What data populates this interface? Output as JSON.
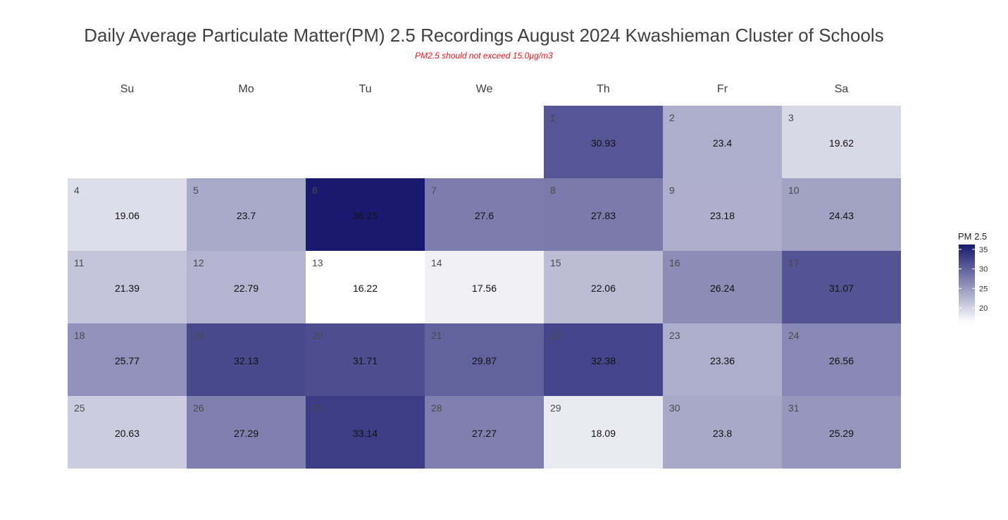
{
  "chart_data": {
    "type": "heatmap",
    "title": "Daily Average Particulate Matter(PM) 2.5 Recordings August 2024 Kwashieman Cluster of Schools",
    "subtitle": "PM2.5 should not exceed 15.0µg/m3",
    "weekdays": [
      "Su",
      "Mo",
      "Tu",
      "We",
      "Th",
      "Fr",
      "Sa"
    ],
    "first_weekday_index": 4,
    "days": [
      1,
      2,
      3,
      4,
      5,
      6,
      7,
      8,
      9,
      10,
      11,
      12,
      13,
      14,
      15,
      16,
      17,
      18,
      19,
      20,
      21,
      22,
      23,
      24,
      25,
      26,
      27,
      28,
      29,
      30,
      31
    ],
    "values": [
      30.93,
      23.4,
      19.62,
      19.06,
      23.7,
      36.25,
      27.6,
      27.83,
      23.18,
      24.43,
      21.39,
      22.79,
      16.22,
      17.56,
      22.06,
      26.24,
      31.07,
      25.77,
      32.13,
      31.71,
      29.87,
      32.38,
      23.36,
      26.56,
      20.63,
      27.29,
      33.14,
      27.27,
      18.09,
      23.8,
      25.29
    ],
    "value_labels": [
      "30.93",
      "23.4",
      "19.62",
      "19.06",
      "23.7",
      "36.25",
      "27.6",
      "27.83",
      "23.18",
      "24.43",
      "21.39",
      "22.79",
      "16.22",
      "17.56",
      "22.06",
      "26.24",
      "31.07",
      "25.77",
      "32.13",
      "31.71",
      "29.87",
      "32.38",
      "23.36",
      "26.56",
      "20.63",
      "27.29",
      "33.14",
      "27.27",
      "18.09",
      "23.8",
      "25.29"
    ],
    "legend": {
      "title": "PM 2.5",
      "ticks": [
        20,
        25,
        30,
        35
      ],
      "range": [
        16.22,
        36.25
      ],
      "position": "right"
    },
    "color_low": "#ffffff",
    "color_high": "#191970"
  }
}
